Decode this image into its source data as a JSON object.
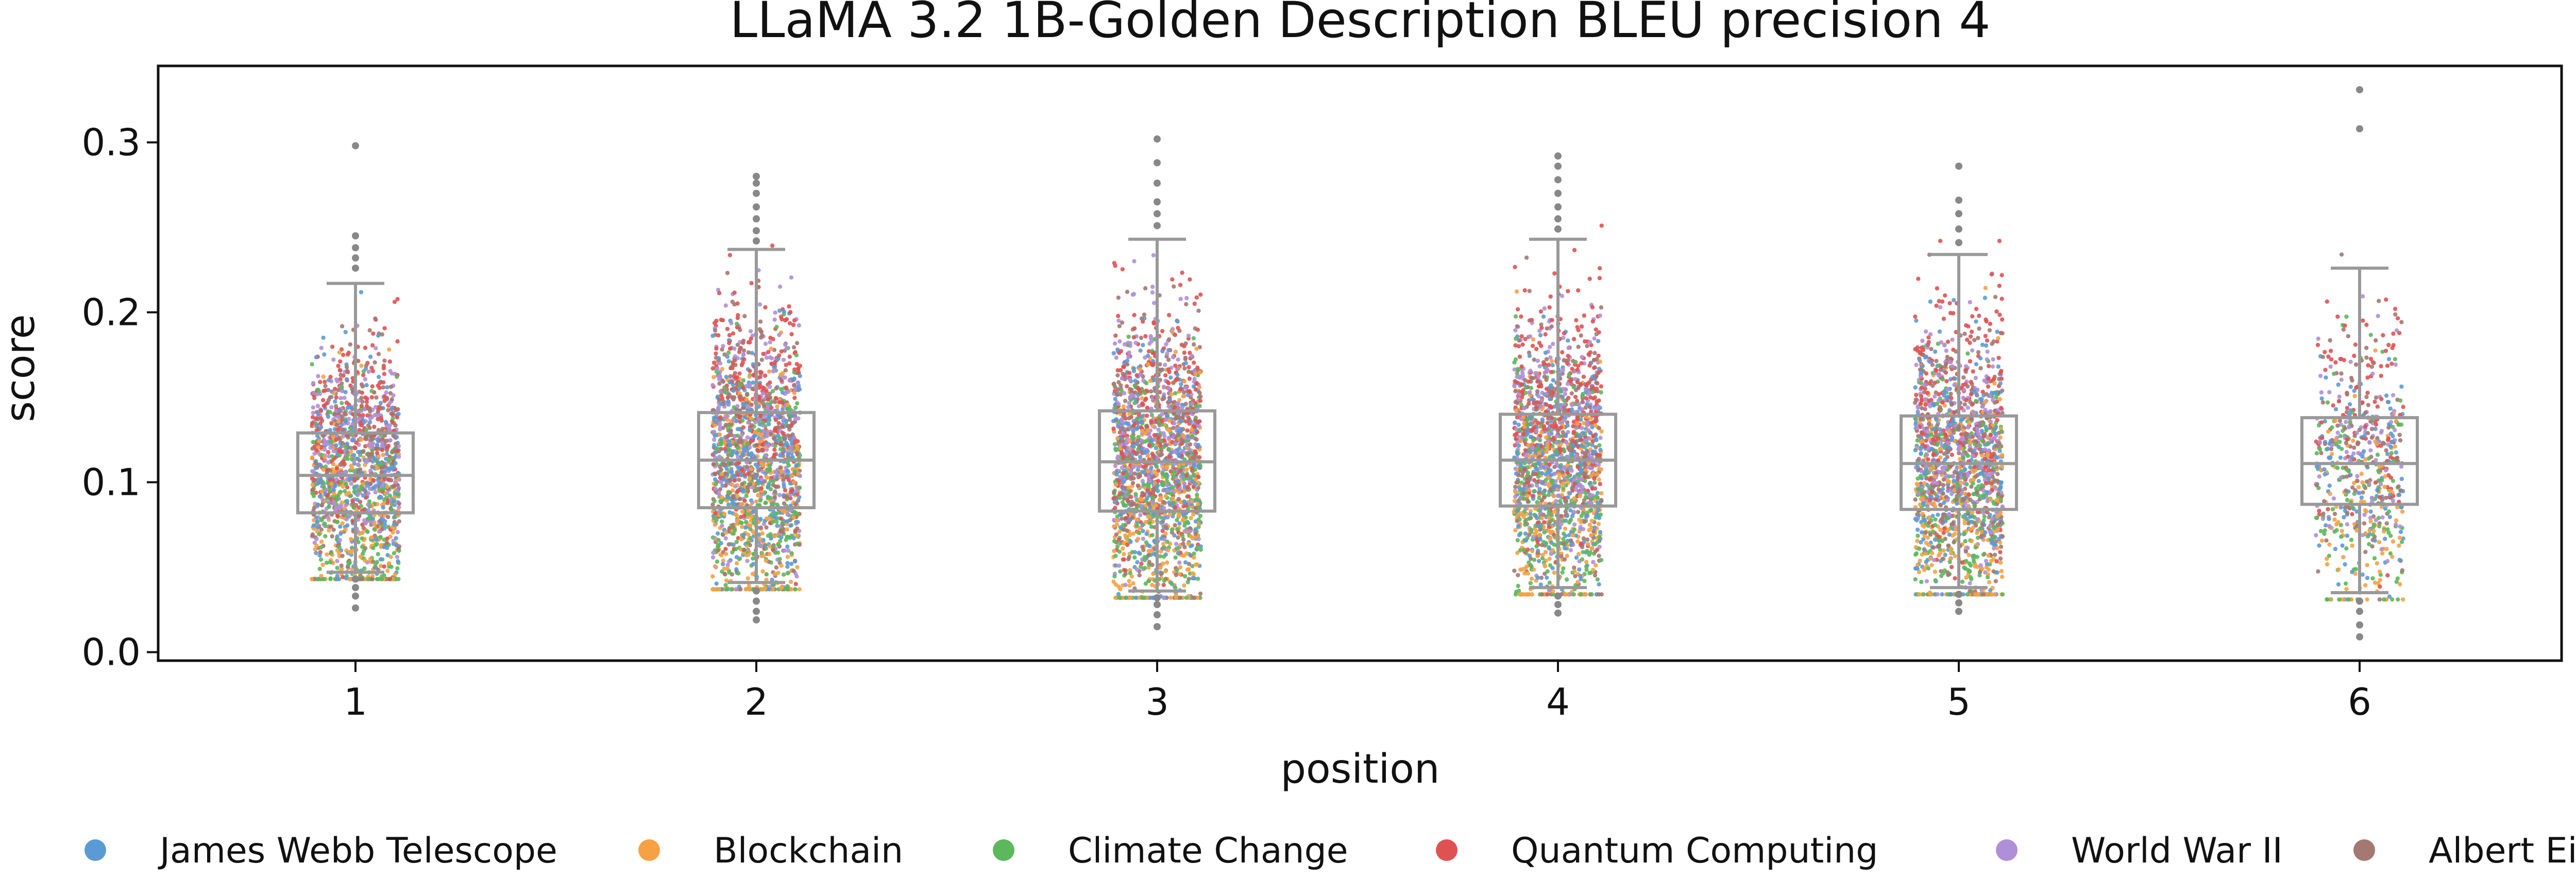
{
  "chart_data": {
    "type": "box-strip",
    "title": "LLaMA 3.2 1B-Golden Description BLEU precision 4",
    "xlabel": "position",
    "ylabel": "score",
    "ylim": [
      -0.005,
      0.345
    ],
    "yticks": [
      {
        "value": 0.0,
        "label": "0.0"
      },
      {
        "value": 0.1,
        "label": "0.1"
      },
      {
        "value": 0.2,
        "label": "0.2"
      },
      {
        "value": 0.3,
        "label": "0.3"
      }
    ],
    "categories": [
      "1",
      "2",
      "3",
      "4",
      "5",
      "6"
    ],
    "boxes": [
      {
        "position": "1",
        "q1": 0.082,
        "median": 0.104,
        "q3": 0.129,
        "whisker_low": 0.047,
        "whisker_high": 0.217,
        "outliers": [
          0.298,
          0.245,
          0.238,
          0.232,
          0.226,
          0.043,
          0.038,
          0.033,
          0.026
        ]
      },
      {
        "position": "2",
        "q1": 0.085,
        "median": 0.113,
        "q3": 0.141,
        "whisker_low": 0.041,
        "whisker_high": 0.237,
        "outliers": [
          0.28,
          0.276,
          0.27,
          0.262,
          0.255,
          0.248,
          0.242,
          0.036,
          0.03,
          0.024,
          0.019
        ]
      },
      {
        "position": "3",
        "q1": 0.083,
        "median": 0.112,
        "q3": 0.142,
        "whisker_low": 0.036,
        "whisker_high": 0.243,
        "outliers": [
          0.302,
          0.288,
          0.276,
          0.265,
          0.258,
          0.251,
          0.032,
          0.028,
          0.022,
          0.015
        ]
      },
      {
        "position": "4",
        "q1": 0.086,
        "median": 0.113,
        "q3": 0.14,
        "whisker_low": 0.038,
        "whisker_high": 0.243,
        "outliers": [
          0.292,
          0.286,
          0.278,
          0.27,
          0.262,
          0.255,
          0.249,
          0.033,
          0.028,
          0.023
        ]
      },
      {
        "position": "5",
        "q1": 0.084,
        "median": 0.111,
        "q3": 0.139,
        "whisker_low": 0.038,
        "whisker_high": 0.234,
        "outliers": [
          0.286,
          0.266,
          0.258,
          0.249,
          0.241,
          0.034,
          0.029,
          0.024
        ]
      },
      {
        "position": "6",
        "q1": 0.087,
        "median": 0.111,
        "q3": 0.138,
        "whisker_low": 0.035,
        "whisker_high": 0.226,
        "outliers": [
          0.331,
          0.308,
          0.03,
          0.024,
          0.016,
          0.009
        ]
      }
    ],
    "strip_point_counts": [
      1500,
      1800,
      1900,
      1800,
      1700,
      650
    ],
    "series": [
      {
        "name": "James Webb Telescope",
        "color": "#5b9bd5"
      },
      {
        "name": "Blockchain",
        "color": "#f6a244"
      },
      {
        "name": "Climate Change",
        "color": "#5cb85c"
      },
      {
        "name": "Quantum Computing",
        "color": "#e05252"
      },
      {
        "name": "World War II",
        "color": "#b08fd8"
      },
      {
        "name": "Albert Einstein",
        "color": "#a57871"
      }
    ],
    "series_score_shift": {
      "James Webb Telescope": -0.003,
      "Blockchain": -0.03,
      "Climate Change": -0.02,
      "Quantum Computing": 0.03,
      "World War II": 0.012,
      "Albert Einstein": 0.005
    },
    "box_color": "#999999",
    "grid": false,
    "legend_position": "bottom"
  }
}
